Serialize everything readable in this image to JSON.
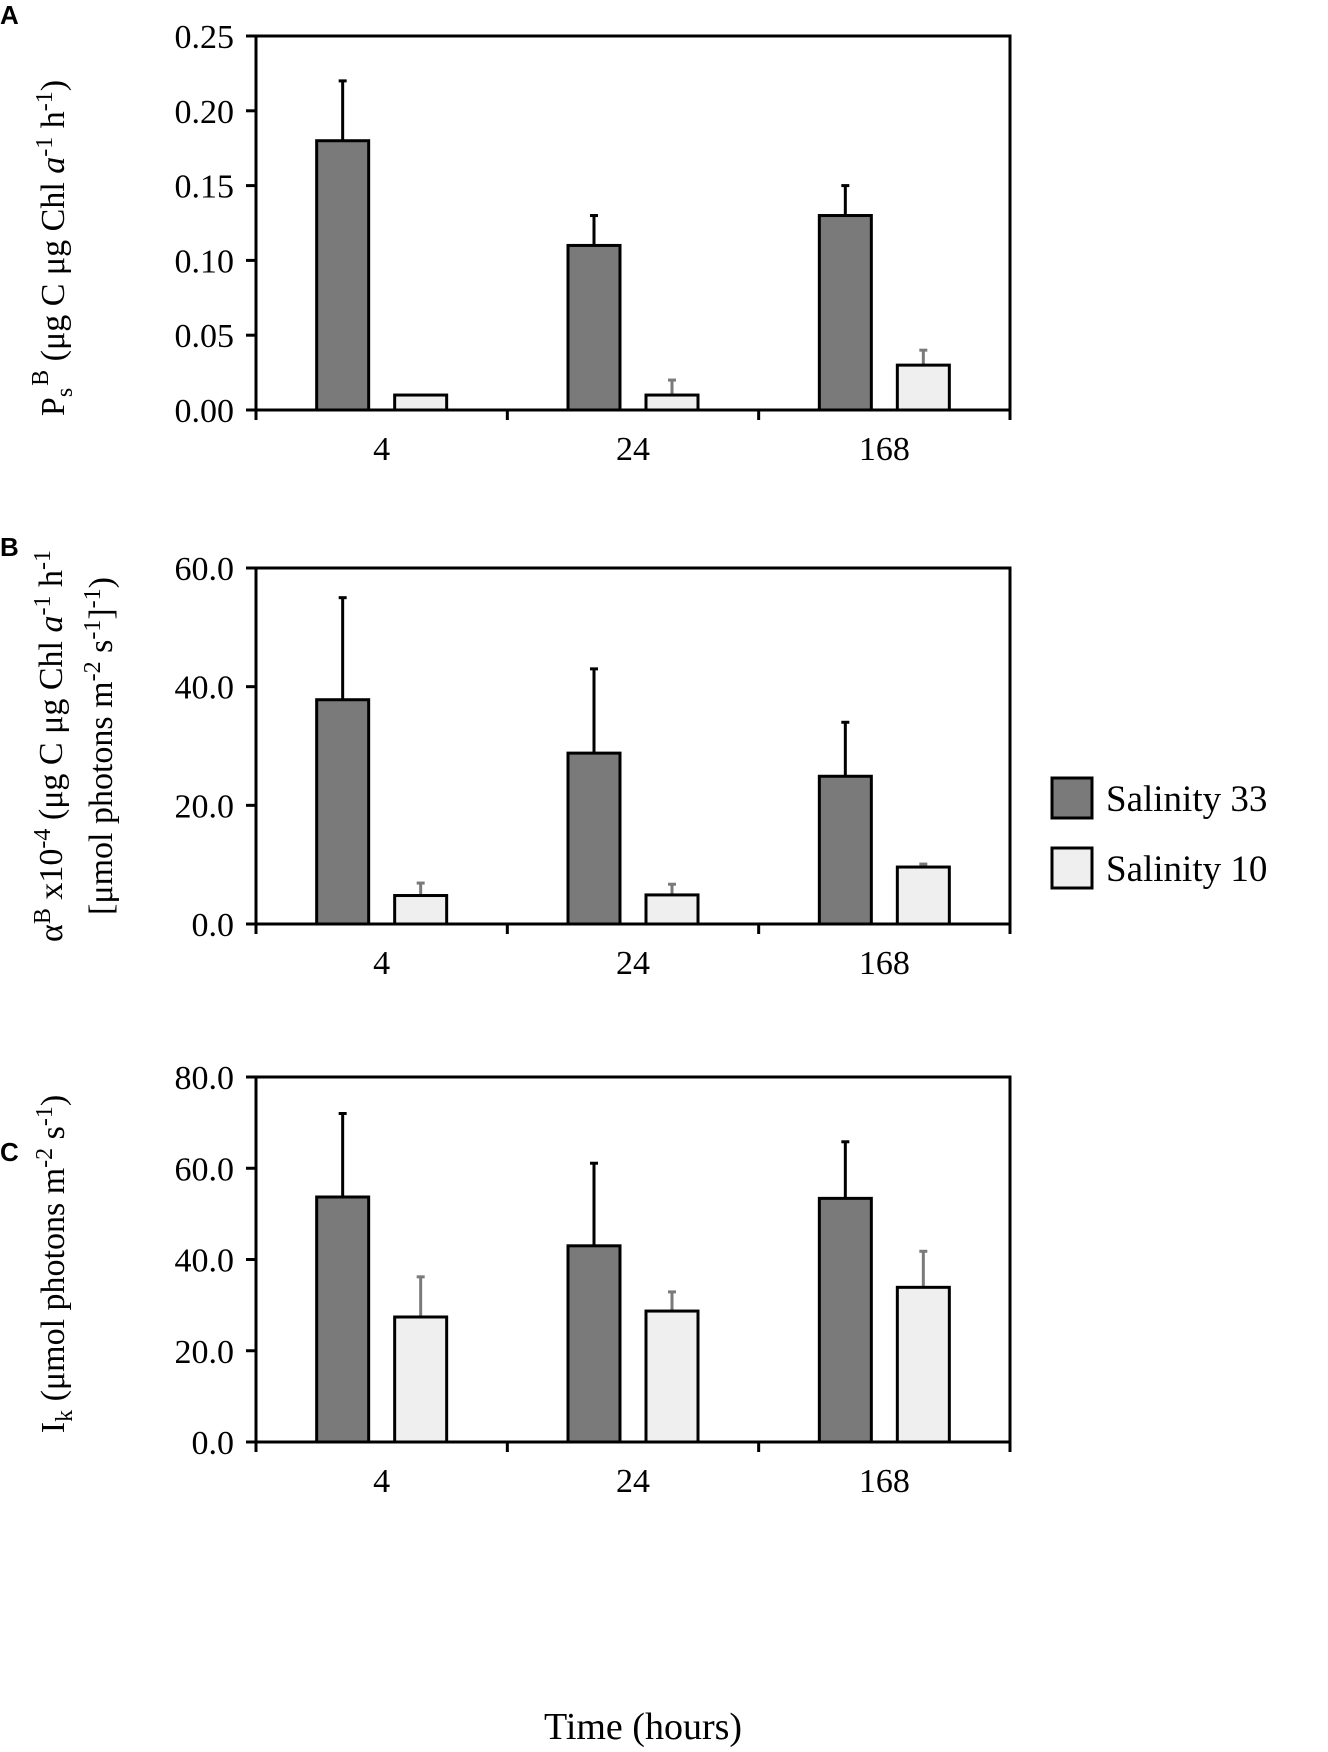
{
  "colors": {
    "salinity33": "#7a7a7a",
    "salinity10": "#efefef",
    "err33": "#000000",
    "err10": "#7a7a7a"
  },
  "legend": [
    {
      "name": "Salinity 33",
      "color_key": "salinity33"
    },
    {
      "name": "Salinity 10",
      "color_key": "salinity10"
    }
  ],
  "xlabel": "Time (hours)",
  "chart_data": [
    {
      "type": "bar",
      "panel_label": "A",
      "categories": [
        "4",
        "24",
        "168"
      ],
      "series": [
        {
          "name": "Salinity 33",
          "values": [
            0.18,
            0.11,
            0.13
          ],
          "errors": [
            0.04,
            0.02,
            0.02
          ]
        },
        {
          "name": "Salinity 10",
          "values": [
            0.01,
            0.01,
            0.03
          ],
          "errors": [
            0.0,
            0.01,
            0.01
          ]
        }
      ],
      "ylim": [
        0,
        0.25
      ],
      "yticks": [
        "0.00",
        "0.05",
        "0.10",
        "0.15",
        "0.20",
        "0.25"
      ],
      "ylabel": "Ps B (μg C μg Chl a-1 h-1)"
    },
    {
      "type": "bar",
      "panel_label": "B",
      "categories": [
        "4",
        "24",
        "168"
      ],
      "series": [
        {
          "name": "Salinity 33",
          "values": [
            37.8,
            28.8,
            24.9
          ],
          "errors": [
            17.2,
            14.2,
            9.1
          ]
        },
        {
          "name": "Salinity 10",
          "values": [
            4.8,
            4.9,
            9.6
          ],
          "errors": [
            2.1,
            1.8,
            0.5
          ]
        }
      ],
      "ylim": [
        0,
        60
      ],
      "yticks": [
        "0.0",
        "20.0",
        "40.0",
        "60.0"
      ],
      "ylabel": "αB x10-4 (μg C μg Chl a-1 h-1 [μmol photons m-2 s-1]-1)"
    },
    {
      "type": "bar",
      "panel_label": "C",
      "categories": [
        "4",
        "24",
        "168"
      ],
      "series": [
        {
          "name": "Salinity 33",
          "values": [
            53.7,
            43.0,
            53.4
          ],
          "errors": [
            18.3,
            18.1,
            12.4
          ]
        },
        {
          "name": "Salinity 10",
          "values": [
            27.4,
            28.7,
            33.9
          ],
          "errors": [
            8.8,
            4.2,
            7.9
          ]
        }
      ],
      "ylim": [
        0,
        80
      ],
      "yticks": [
        "0.0",
        "20.0",
        "40.0",
        "60.0",
        "80.0"
      ],
      "ylabel": "Ik (μmol photons m-2 s-1)"
    }
  ]
}
